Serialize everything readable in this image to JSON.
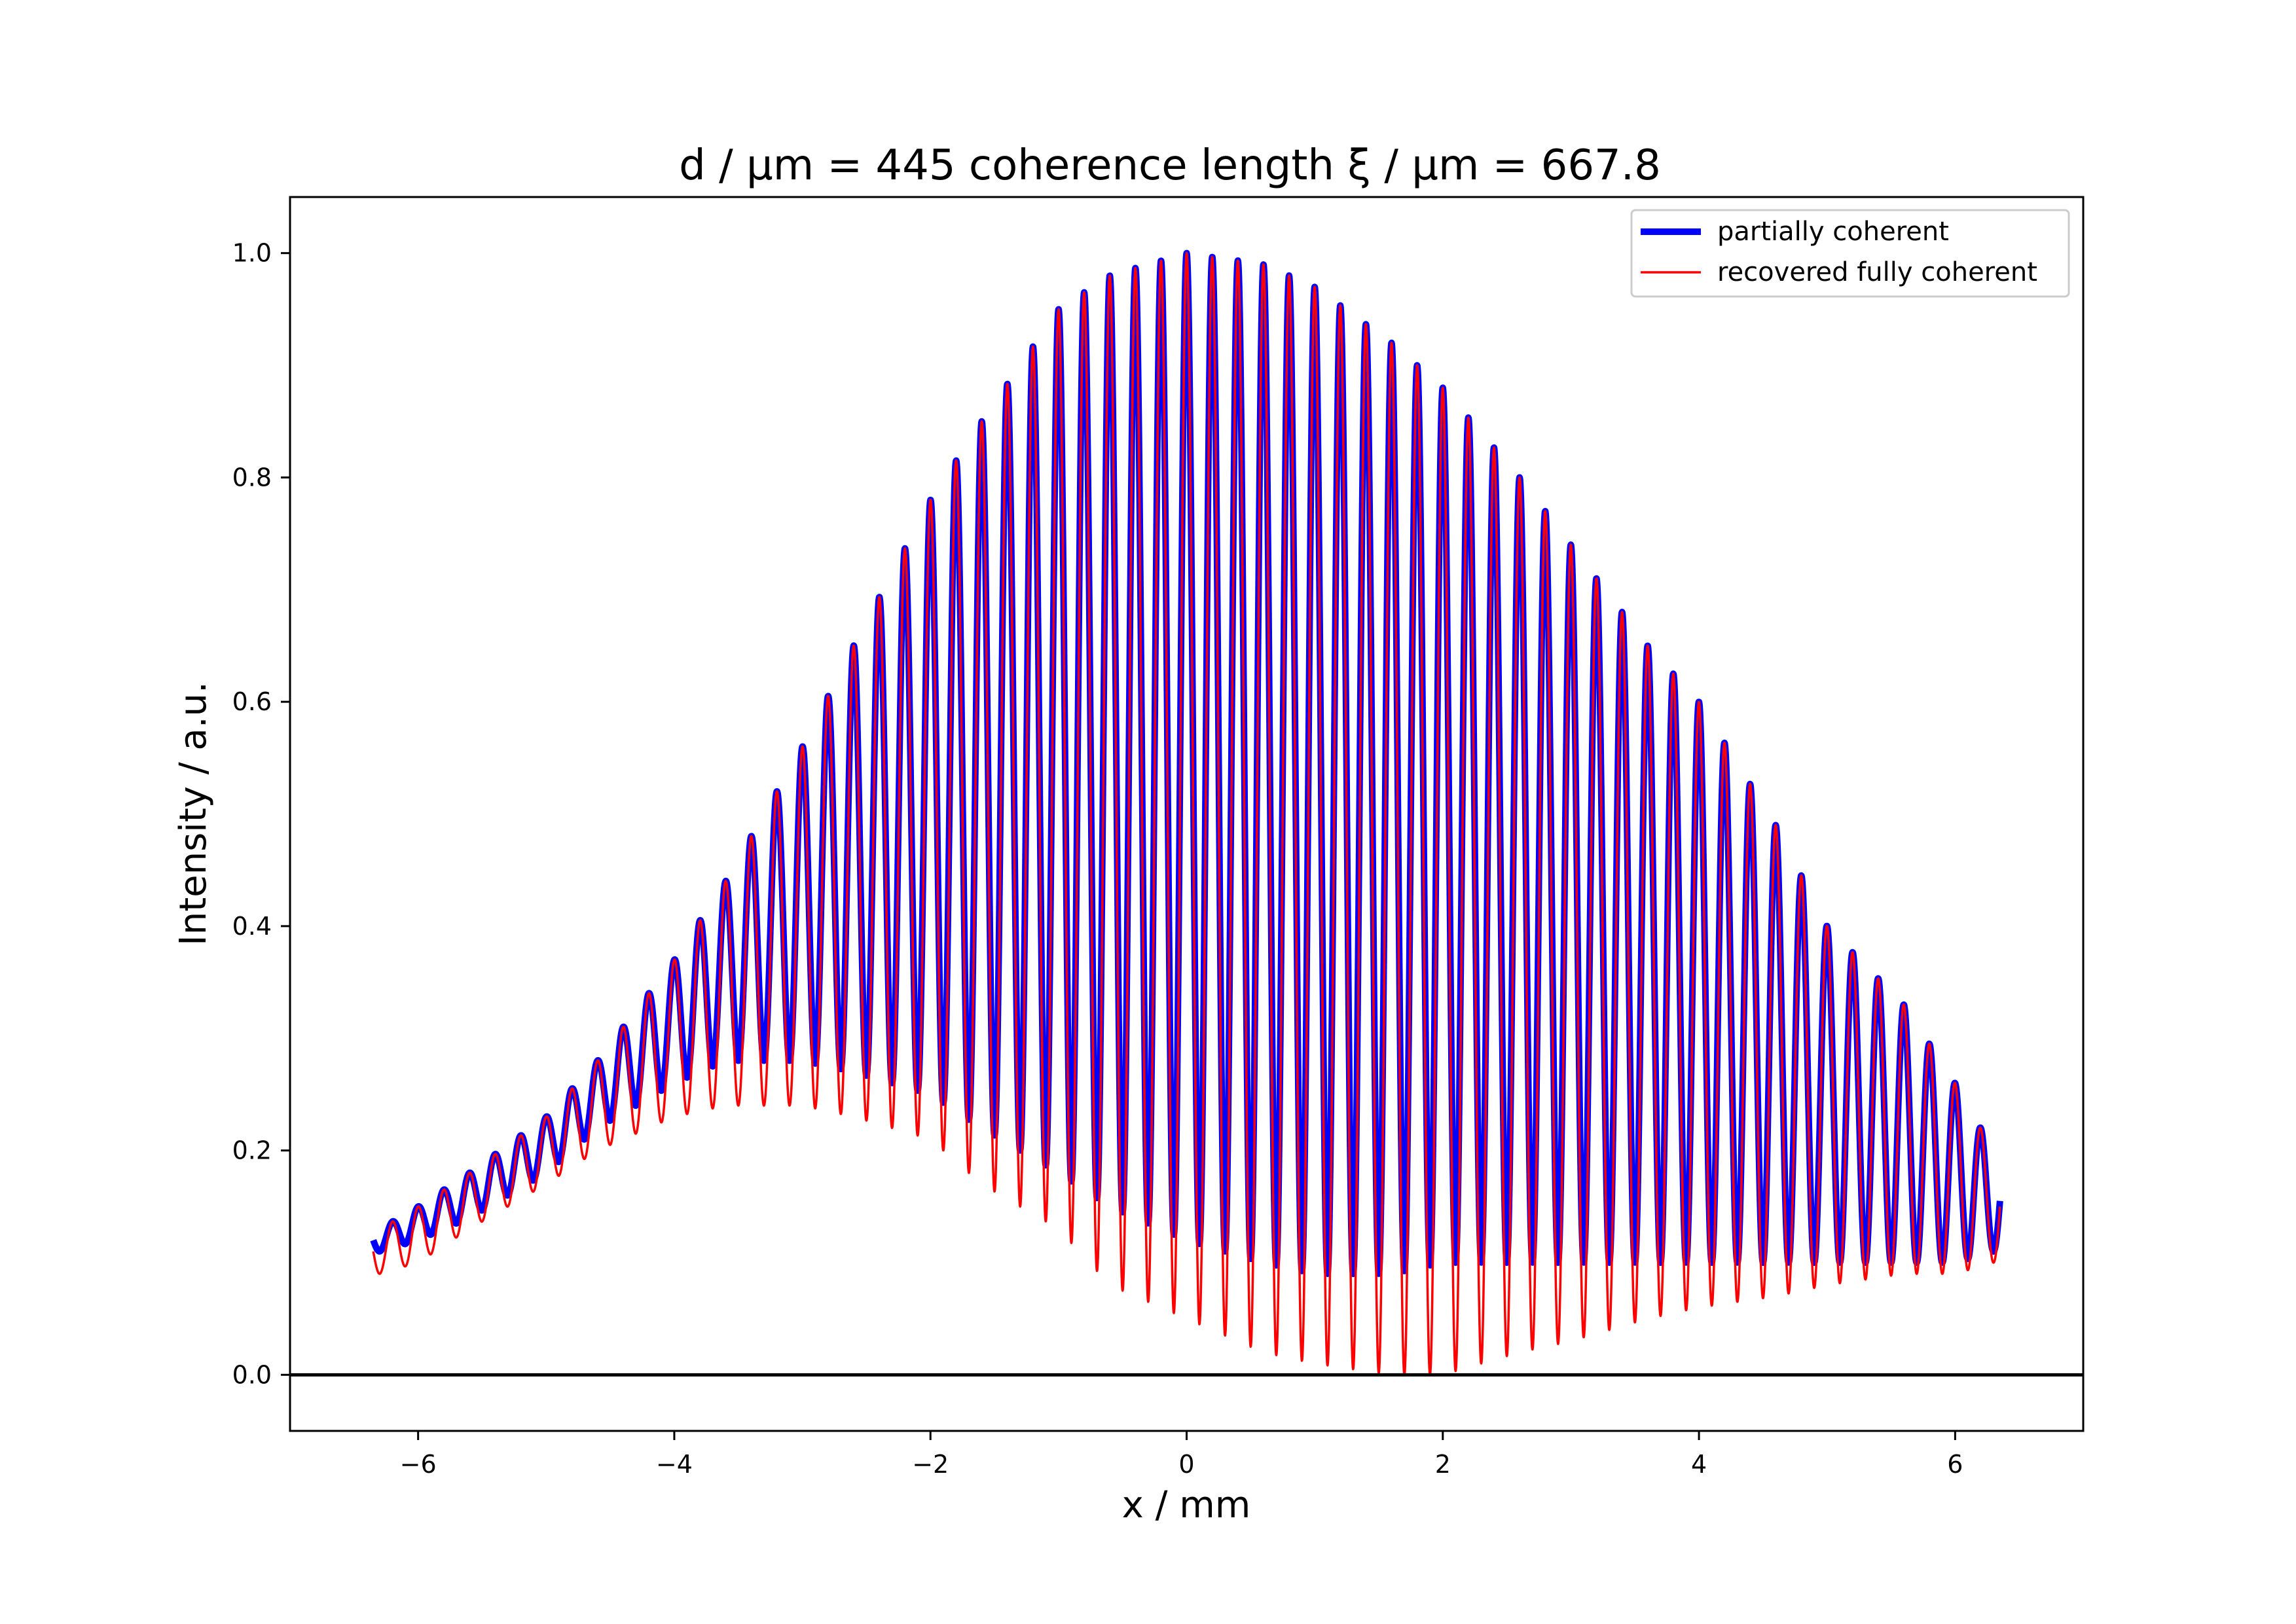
{
  "chart_data": {
    "type": "line",
    "title": "d / μm = 445 coherence length ξ / μm = 667.8",
    "xlabel": "x / mm",
    "ylabel": "Intensity / a.u.",
    "xlim": [
      -7.0,
      7.0
    ],
    "ylim": [
      -0.05,
      1.05
    ],
    "xticks": [
      -6,
      -4,
      -2,
      0,
      2,
      4,
      6
    ],
    "xtick_labels": [
      "−6",
      "−4",
      "−2",
      "0",
      "2",
      "4",
      "6"
    ],
    "yticks": [
      0.0,
      0.2,
      0.4,
      0.6,
      0.8,
      1.0
    ],
    "ytick_labels": [
      "0.0",
      "0.2",
      "0.4",
      "0.6",
      "0.8",
      "1.0"
    ],
    "grid": false,
    "legend": "top-right",
    "reference_line": {
      "y": 0.0,
      "color": "#000000"
    },
    "x_range_of_data": [
      -6.35,
      6.35
    ],
    "fringe_period_mm": 0.2,
    "envelope_peak": {
      "x": 0.0,
      "y": 1.0
    },
    "series": [
      {
        "name": "partially coherent",
        "color": "#0000ff",
        "style": "thick",
        "x": [
          -6.3,
          -6.0,
          -5.6,
          -5.0,
          -4.6,
          -4.0,
          -3.6,
          -3.0,
          -2.6,
          -2.0,
          -1.6,
          -1.0,
          -0.6,
          0.0,
          0.6,
          1.0,
          1.6,
          2.0,
          2.6,
          3.0,
          3.6,
          4.0,
          4.6,
          5.0,
          5.6,
          6.0,
          6.3
        ],
        "max_values": [
          0.13,
          0.15,
          0.18,
          0.23,
          0.28,
          0.37,
          0.44,
          0.56,
          0.65,
          0.78,
          0.85,
          0.95,
          0.98,
          1.0,
          0.99,
          0.97,
          0.92,
          0.88,
          0.8,
          0.74,
          0.65,
          0.6,
          0.49,
          0.4,
          0.33,
          0.26,
          0.2
        ],
        "min_values": [
          0.11,
          0.12,
          0.14,
          0.18,
          0.22,
          0.26,
          0.28,
          0.28,
          0.27,
          0.25,
          0.22,
          0.18,
          0.15,
          0.12,
          0.1,
          0.09,
          0.09,
          0.1,
          0.1,
          0.1,
          0.1,
          0.1,
          0.1,
          0.1,
          0.1,
          0.1,
          0.11
        ]
      },
      {
        "name": "recovered fully coherent",
        "color": "#ff0000",
        "style": "thin",
        "x": [
          -6.3,
          -6.0,
          -5.6,
          -5.0,
          -4.6,
          -4.0,
          -3.6,
          -3.0,
          -2.6,
          -2.0,
          -1.6,
          -1.0,
          -0.6,
          0.0,
          0.6,
          1.0,
          1.6,
          2.0,
          2.6,
          3.0,
          3.6,
          4.0,
          4.6,
          5.0,
          5.6,
          6.0,
          6.3
        ],
        "max_values": [
          0.13,
          0.15,
          0.18,
          0.23,
          0.28,
          0.37,
          0.44,
          0.56,
          0.65,
          0.78,
          0.85,
          0.95,
          0.98,
          1.0,
          0.99,
          0.97,
          0.92,
          0.88,
          0.8,
          0.74,
          0.65,
          0.6,
          0.49,
          0.4,
          0.33,
          0.26,
          0.2
        ],
        "min_values": [
          0.09,
          0.1,
          0.13,
          0.17,
          0.2,
          0.23,
          0.24,
          0.24,
          0.23,
          0.21,
          0.17,
          0.13,
          0.08,
          0.05,
          0.02,
          0.01,
          0.0,
          0.0,
          0.02,
          0.03,
          0.05,
          0.06,
          0.07,
          0.08,
          0.09,
          0.09,
          0.1
        ]
      }
    ]
  }
}
